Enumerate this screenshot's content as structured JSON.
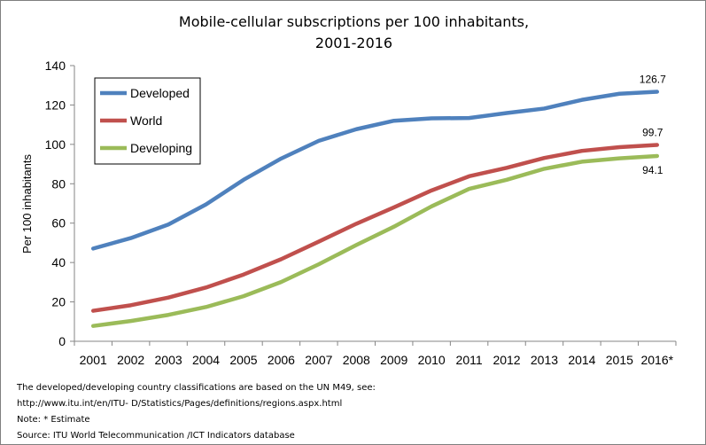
{
  "chart_data": {
    "type": "line",
    "title_line1": "Mobile-cellular subscriptions per 100 inhabitants,",
    "title_line2": "2001-2016",
    "xlabel": "",
    "ylabel": "Per 100 inhabitants",
    "ylim": [
      0,
      140
    ],
    "yticks": [
      0,
      20,
      40,
      60,
      80,
      100,
      120,
      140
    ],
    "categories": [
      "2001",
      "2002",
      "2003",
      "2004",
      "2005",
      "2006",
      "2007",
      "2008",
      "2009",
      "2010",
      "2011",
      "2012",
      "2013",
      "2014",
      "2015",
      "2016*"
    ],
    "grid": false,
    "legend_position": "top-left",
    "series": [
      {
        "name": "Developed",
        "color": "#4f81bd",
        "values": [
          47.1,
          52.4,
          59.3,
          69.5,
          82.0,
          92.8,
          101.8,
          107.7,
          112.0,
          113.2,
          113.4,
          115.9,
          118.2,
          122.6,
          125.7,
          126.7
        ]
      },
      {
        "name": "World",
        "color": "#c0504d",
        "values": [
          15.5,
          18.3,
          22.2,
          27.3,
          33.9,
          41.7,
          50.6,
          59.7,
          68.0,
          76.6,
          83.8,
          88.1,
          93.1,
          96.7,
          98.6,
          99.7
        ]
      },
      {
        "name": "Developing",
        "color": "#9bbb59",
        "values": [
          7.8,
          10.3,
          13.4,
          17.4,
          22.9,
          30.1,
          39.1,
          48.9,
          58.2,
          68.5,
          77.4,
          82.0,
          87.6,
          91.2,
          92.9,
          94.1
        ]
      }
    ],
    "annotations": [
      {
        "series": "Developed",
        "text": "126.7"
      },
      {
        "series": "World",
        "text": "99.7"
      },
      {
        "series": "Developing",
        "text": "94.1"
      }
    ]
  },
  "notes": {
    "line1": "The developed/developing country classifications are based on the UN M49, see:",
    "line2": "http://www.itu.int/en/ITU- D/Statistics/Pages/definitions/regions.aspx.html",
    "line3": "Note: * Estimate",
    "line4": "Source:  ITU World Telecommunication /ICT Indicators database"
  }
}
